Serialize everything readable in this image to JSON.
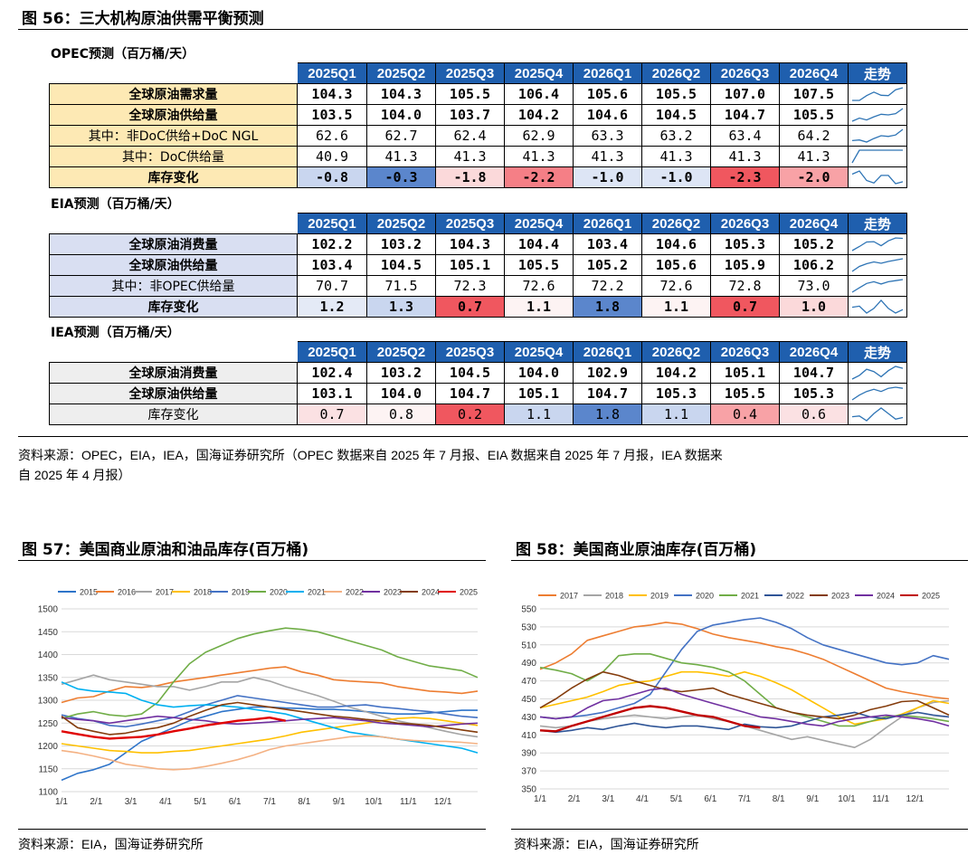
{
  "fig56": {
    "title": "图 56：三大机构原油供需平衡预测",
    "trend_label": "走势",
    "quarters": [
      "2025Q1",
      "2025Q2",
      "2025Q3",
      "2025Q4",
      "2026Q1",
      "2026Q2",
      "2026Q3",
      "2026Q4"
    ],
    "sections": [
      {
        "title": "OPEC预测（百万桶/天）",
        "label_bg": "#fde9b4",
        "rows": [
          {
            "label": "全球原油需求量",
            "values": [
              "104.3",
              "104.3",
              "105.5",
              "106.4",
              "105.6",
              "105.5",
              "107.0",
              "107.5"
            ],
            "colors": [
              "#fff",
              "#fff",
              "#fff",
              "#fff",
              "#fff",
              "#fff",
              "#fff",
              "#fff"
            ],
            "bold": true
          },
          {
            "label": "全球原油供给量",
            "values": [
              "103.5",
              "104.0",
              "103.7",
              "104.2",
              "104.6",
              "104.5",
              "104.7",
              "105.5"
            ],
            "colors": [
              "#fff",
              "#fff",
              "#fff",
              "#fff",
              "#fff",
              "#fff",
              "#fff",
              "#fff"
            ],
            "bold": true
          },
          {
            "label": "其中：非DoC供给+DoC NGL",
            "values": [
              "62.6",
              "62.7",
              "62.4",
              "62.9",
              "63.3",
              "63.2",
              "63.4",
              "64.2"
            ],
            "colors": [
              "#fff",
              "#fff",
              "#fff",
              "#fff",
              "#fff",
              "#fff",
              "#fff",
              "#fff"
            ],
            "bold": false
          },
          {
            "label": "其中：DoC供给量",
            "values": [
              "40.9",
              "41.3",
              "41.3",
              "41.3",
              "41.3",
              "41.3",
              "41.3",
              "41.3"
            ],
            "colors": [
              "#fff",
              "#fff",
              "#fff",
              "#fff",
              "#fff",
              "#fff",
              "#fff",
              "#fff"
            ],
            "bold": false
          },
          {
            "label": "库存变化",
            "values": [
              "-0.8",
              "-0.3",
              "-1.8",
              "-2.2",
              "-1.0",
              "-1.0",
              "-2.3",
              "-2.0"
            ],
            "colors": [
              "#c9d6ef",
              "#5b86cc",
              "#fbd9da",
              "#f57f86",
              "#dde5f5",
              "#dde5f5",
              "#f0575f",
              "#f8a2a6"
            ],
            "bold": true
          }
        ]
      },
      {
        "title": "EIA预测（百万桶/天）",
        "label_bg": "#d9dff2",
        "rows": [
          {
            "label": "全球原油消费量",
            "values": [
              "102.2",
              "103.2",
              "104.3",
              "104.4",
              "103.4",
              "104.6",
              "105.3",
              "105.2"
            ],
            "colors": [
              "#fff",
              "#fff",
              "#fff",
              "#fff",
              "#fff",
              "#fff",
              "#fff",
              "#fff"
            ],
            "bold": true
          },
          {
            "label": "全球原油供给量",
            "values": [
              "103.4",
              "104.5",
              "105.1",
              "105.5",
              "105.2",
              "105.6",
              "105.9",
              "106.2"
            ],
            "colors": [
              "#fff",
              "#fff",
              "#fff",
              "#fff",
              "#fff",
              "#fff",
              "#fff",
              "#fff"
            ],
            "bold": true
          },
          {
            "label": "其中：非OPEC供给量",
            "values": [
              "70.7",
              "71.5",
              "72.3",
              "72.6",
              "72.2",
              "72.6",
              "72.8",
              "73.0"
            ],
            "colors": [
              "#fff",
              "#fff",
              "#fff",
              "#fff",
              "#fff",
              "#fff",
              "#fff",
              "#fff"
            ],
            "bold": false
          },
          {
            "label": "库存变化",
            "values": [
              "1.2",
              "1.3",
              "0.7",
              "1.1",
              "1.8",
              "1.1",
              "0.7",
              "1.0"
            ],
            "colors": [
              "#e4eaf6",
              "#c9d6ef",
              "#f0575f",
              "#fdf3f3",
              "#5b86cc",
              "#fdf3f3",
              "#f0575f",
              "#fbd9da"
            ],
            "bold": true
          }
        ]
      },
      {
        "title": "IEA预测（百万桶/天）",
        "label_bg": "#eeeeee",
        "rows": [
          {
            "label": "全球原油消费量",
            "values": [
              "102.4",
              "103.2",
              "104.5",
              "104.0",
              "102.9",
              "104.2",
              "105.1",
              "104.7"
            ],
            "colors": [
              "#fff",
              "#fff",
              "#fff",
              "#fff",
              "#fff",
              "#fff",
              "#fff",
              "#fff"
            ],
            "bold": true
          },
          {
            "label": "全球原油供给量",
            "values": [
              "103.1",
              "104.0",
              "104.7",
              "105.1",
              "104.7",
              "105.3",
              "105.5",
              "105.3"
            ],
            "colors": [
              "#fff",
              "#fff",
              "#fff",
              "#fff",
              "#fff",
              "#fff",
              "#fff",
              "#fff"
            ],
            "bold": true
          },
          {
            "label": "库存变化",
            "values": [
              "0.7",
              "0.8",
              "0.2",
              "1.1",
              "1.8",
              "1.1",
              "0.4",
              "0.6"
            ],
            "colors": [
              "#fbe1e3",
              "#fdf3f3",
              "#f0575f",
              "#c9d6ef",
              "#5b86cc",
              "#c9d6ef",
              "#f8a2a6",
              "#fbe1e3"
            ],
            "bold": false
          }
        ]
      }
    ],
    "source_line1": "资料来源：OPEC，EIA，IEA，国海证券研究所（OPEC 数据来自 2025 年 7 月报、EIA 数据来自 2025 年 7 月报，IEA 数据来",
    "source_line2": "自 2025 年 4 月报）"
  },
  "fig57": {
    "title": "图 57：美国商业原油和油品库存(百万桶)",
    "source": "资料来源：EIA，国海证券研究所"
  },
  "fig58": {
    "title": "图 58：美国商业原油库存(百万桶)",
    "source": "资料来源：EIA，国海证券研究所"
  },
  "chart_data": [
    {
      "type": "line",
      "title": "",
      "x_ticks": [
        "1/1",
        "2/1",
        "3/1",
        "4/1",
        "5/1",
        "6/1",
        "7/1",
        "8/1",
        "9/1",
        "10/1",
        "11/1",
        "12/1"
      ],
      "ylim": [
        1100,
        1500
      ],
      "y_ticks": [
        1100,
        1150,
        1200,
        1250,
        1300,
        1350,
        1400,
        1450,
        1500
      ],
      "grid": "horizontal",
      "legend": "top",
      "series": [
        {
          "name": "2015",
          "color": "#2e74c9",
          "values": [
            1125,
            1140,
            1148,
            1160,
            1185,
            1210,
            1225,
            1240,
            1255,
            1265,
            1275,
            1280,
            1285,
            1285,
            1283,
            1282,
            1280,
            1280,
            1278,
            1275,
            1272,
            1270,
            1270,
            1272,
            1275,
            1278,
            1278
          ]
        },
        {
          "name": "2016",
          "color": "#ed7d31",
          "values": [
            1295,
            1305,
            1308,
            1320,
            1330,
            1328,
            1332,
            1340,
            1345,
            1350,
            1355,
            1360,
            1365,
            1370,
            1373,
            1362,
            1355,
            1345,
            1342,
            1340,
            1338,
            1330,
            1325,
            1320,
            1318,
            1315,
            1320
          ]
        },
        {
          "name": "2017",
          "color": "#a5a5a5",
          "values": [
            1335,
            1345,
            1355,
            1345,
            1340,
            1335,
            1330,
            1330,
            1322,
            1330,
            1340,
            1340,
            1350,
            1342,
            1330,
            1320,
            1310,
            1298,
            1285,
            1275,
            1265,
            1255,
            1248,
            1240,
            1232,
            1225,
            1220
          ]
        },
        {
          "name": "2018",
          "color": "#ffc000",
          "values": [
            1205,
            1200,
            1195,
            1190,
            1188,
            1185,
            1185,
            1188,
            1190,
            1195,
            1200,
            1205,
            1210,
            1215,
            1222,
            1230,
            1235,
            1240,
            1245,
            1250,
            1255,
            1260,
            1262,
            1260,
            1255,
            1250,
            1245
          ]
        },
        {
          "name": "2019",
          "color": "#4472c4",
          "values": [
            1268,
            1260,
            1255,
            1245,
            1242,
            1248,
            1255,
            1262,
            1275,
            1290,
            1300,
            1310,
            1305,
            1300,
            1295,
            1290,
            1285,
            1285,
            1288,
            1290,
            1285,
            1282,
            1278,
            1275,
            1270,
            1265,
            1262
          ]
        },
        {
          "name": "2020",
          "color": "#70ad47",
          "values": [
            1260,
            1270,
            1275,
            1268,
            1265,
            1270,
            1295,
            1340,
            1380,
            1405,
            1420,
            1435,
            1445,
            1452,
            1458,
            1455,
            1450,
            1440,
            1430,
            1420,
            1410,
            1395,
            1385,
            1375,
            1370,
            1365,
            1350
          ]
        },
        {
          "name": "2021",
          "color": "#00b0f0",
          "values": [
            1340,
            1325,
            1320,
            1318,
            1315,
            1300,
            1290,
            1285,
            1288,
            1290,
            1288,
            1285,
            1280,
            1275,
            1270,
            1260,
            1250,
            1240,
            1230,
            1225,
            1220,
            1215,
            1210,
            1205,
            1200,
            1195,
            1185
          ]
        },
        {
          "name": "2022",
          "color": "#f4b183",
          "values": [
            1190,
            1185,
            1178,
            1170,
            1160,
            1155,
            1150,
            1148,
            1150,
            1155,
            1162,
            1170,
            1180,
            1192,
            1200,
            1205,
            1210,
            1215,
            1220,
            1222,
            1220,
            1215,
            1212,
            1210,
            1210,
            1208,
            1205
          ]
        },
        {
          "name": "2023",
          "color": "#7030a0",
          "values": [
            1262,
            1258,
            1255,
            1250,
            1255,
            1260,
            1265,
            1262,
            1258,
            1255,
            1250,
            1248,
            1250,
            1252,
            1255,
            1258,
            1260,
            1262,
            1258,
            1255,
            1250,
            1248,
            1245,
            1242,
            1245,
            1248,
            1250
          ]
        },
        {
          "name": "2024",
          "color": "#843c0c",
          "values": [
            1265,
            1240,
            1232,
            1225,
            1228,
            1235,
            1240,
            1250,
            1265,
            1278,
            1290,
            1295,
            1290,
            1285,
            1280,
            1275,
            1270,
            1265,
            1262,
            1258,
            1255,
            1250,
            1248,
            1245,
            1240,
            1235,
            1230
          ]
        },
        {
          "name": "2025",
          "color": "#e00000",
          "values": [
            1232,
            1226,
            1220,
            1216,
            1218,
            1220,
            1225,
            1232,
            1238,
            1245,
            1250,
            1255,
            1258,
            1262,
            1255
          ]
        }
      ]
    },
    {
      "type": "line",
      "title": "",
      "x_ticks": [
        "1/1",
        "2/1",
        "3/1",
        "4/1",
        "5/1",
        "6/1",
        "7/1",
        "8/1",
        "9/1",
        "10/1",
        "11/1",
        "12/1"
      ],
      "ylim": [
        350,
        550
      ],
      "y_ticks": [
        350,
        370,
        390,
        410,
        430,
        450,
        470,
        490,
        510,
        530,
        550
      ],
      "grid": "horizontal",
      "legend": "top",
      "series": [
        {
          "name": "2017",
          "color": "#ed7d31",
          "values": [
            483,
            490,
            500,
            515,
            520,
            525,
            530,
            532,
            535,
            533,
            528,
            522,
            518,
            515,
            512,
            508,
            505,
            500,
            494,
            486,
            478,
            470,
            462,
            458,
            455,
            452,
            450
          ]
        },
        {
          "name": "2018",
          "color": "#a5a5a5",
          "values": [
            420,
            418,
            420,
            425,
            428,
            430,
            432,
            430,
            428,
            430,
            432,
            428,
            425,
            420,
            415,
            410,
            405,
            408,
            404,
            400,
            396,
            405,
            418,
            430,
            440,
            446,
            448
          ]
        },
        {
          "name": "2019",
          "color": "#ffc000",
          "values": [
            440,
            444,
            448,
            452,
            458,
            465,
            468,
            470,
            475,
            480,
            480,
            478,
            475,
            480,
            475,
            468,
            460,
            450,
            440,
            430,
            422,
            425,
            428,
            433,
            440,
            448,
            445
          ]
        },
        {
          "name": "2020",
          "color": "#4472c4",
          "values": [
            430,
            428,
            430,
            432,
            435,
            440,
            445,
            455,
            480,
            505,
            525,
            532,
            535,
            538,
            540,
            535,
            528,
            518,
            510,
            505,
            500,
            495,
            490,
            488,
            490,
            498,
            494
          ]
        },
        {
          "name": "2021",
          "color": "#70ad47",
          "values": [
            485,
            482,
            478,
            470,
            480,
            498,
            500,
            500,
            495,
            490,
            488,
            485,
            480,
            470,
            455,
            440,
            435,
            430,
            425,
            420,
            420,
            425,
            430,
            432,
            430,
            428,
            425
          ]
        },
        {
          "name": "2022",
          "color": "#2f5597",
          "values": [
            415,
            413,
            415,
            418,
            416,
            420,
            423,
            420,
            418,
            420,
            420,
            418,
            416,
            422,
            419,
            418,
            420,
            425,
            430,
            432,
            435,
            430,
            428,
            432,
            435,
            432,
            430
          ]
        },
        {
          "name": "2023",
          "color": "#843c0c",
          "values": [
            440,
            450,
            462,
            472,
            480,
            476,
            470,
            465,
            460,
            458,
            460,
            462,
            455,
            450,
            445,
            440,
            435,
            432,
            430,
            428,
            432,
            438,
            442,
            447,
            448,
            440,
            432
          ]
        },
        {
          "name": "2024",
          "color": "#7030a0",
          "values": [
            430,
            428,
            430,
            440,
            448,
            450,
            455,
            460,
            462,
            455,
            450,
            445,
            440,
            435,
            430,
            428,
            425,
            422,
            420,
            425,
            428,
            430,
            432,
            430,
            428,
            425,
            420
          ]
        },
        {
          "name": "2025",
          "color": "#c00000",
          "values": [
            415,
            414,
            420,
            425,
            430,
            435,
            440,
            442,
            440,
            436,
            432,
            430,
            425,
            420,
            418
          ]
        }
      ]
    }
  ]
}
